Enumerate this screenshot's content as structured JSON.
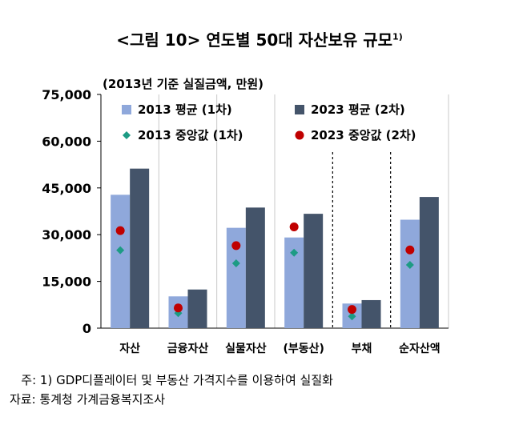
{
  "title": {
    "text": "<그림 10> 연도별 50대 자산보유 규모",
    "superscript": "1)"
  },
  "chart_data": {
    "type": "bar",
    "unit_label": "(2013년 기준 실질금액, 만원)",
    "categories": [
      "자산",
      "금융자산",
      "실물자산",
      "(부동산)",
      "부채",
      "순자산액"
    ],
    "series": [
      {
        "name": "2013 평균 (1차)",
        "kind": "bar",
        "color": "#8FA8DB",
        "values": [
          42800,
          10200,
          32200,
          29100,
          7900,
          34800
        ]
      },
      {
        "name": "2023 평균 (2차)",
        "kind": "bar",
        "color": "#44546A",
        "values": [
          51200,
          12400,
          38700,
          36700,
          9000,
          42100
        ]
      },
      {
        "name": "2013 중앙값 (1차)",
        "kind": "marker",
        "marker": "diamond",
        "color": "#1D9B84",
        "values": [
          25000,
          4800,
          20800,
          24200,
          3800,
          20300
        ]
      },
      {
        "name": "2023 중앙값 (2차)",
        "kind": "marker",
        "marker": "circle",
        "color": "#C00000",
        "values": [
          31300,
          6500,
          26500,
          32500,
          6000,
          25100
        ]
      }
    ],
    "ylim": [
      0,
      75000
    ],
    "yticks": [
      0,
      15000,
      30000,
      45000,
      60000,
      75000
    ],
    "ytick_labels": [
      "0",
      "15,000",
      "30,000",
      "45,000",
      "60,000",
      "75,000"
    ],
    "grid": "vertical category separators",
    "dashed_separators_after": [
      "(부동산)",
      "부채"
    ],
    "legend_position": "top"
  },
  "notes": {
    "note1": "   주: 1) GDP디플레이터 및 부동산 가격지수를 이용하여 실질화",
    "source": "자료: 통계청 가계금융복지조사"
  }
}
